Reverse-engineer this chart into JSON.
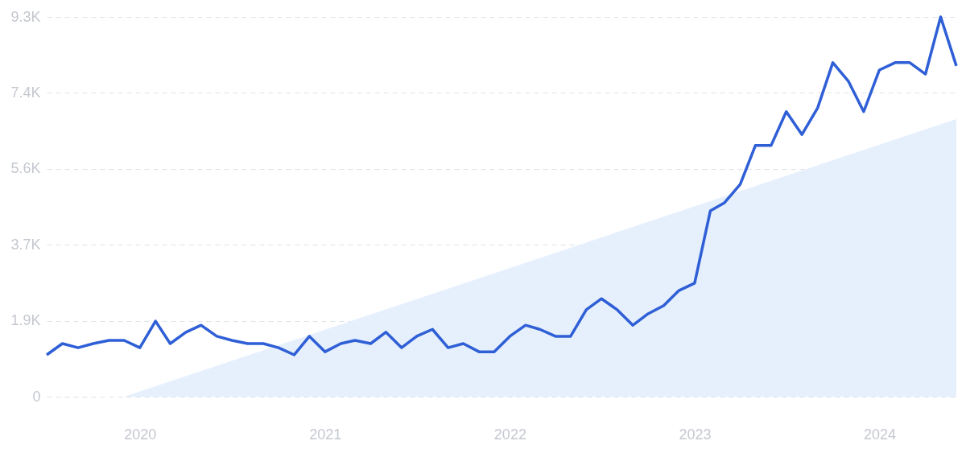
{
  "chart_data": {
    "type": "line",
    "x": [
      "2019-07",
      "2019-08",
      "2019-09",
      "2019-10",
      "2019-11",
      "2019-12",
      "2020-01",
      "2020-02",
      "2020-03",
      "2020-04",
      "2020-05",
      "2020-06",
      "2020-07",
      "2020-08",
      "2020-09",
      "2020-10",
      "2020-11",
      "2020-12",
      "2021-01",
      "2021-02",
      "2021-03",
      "2021-04",
      "2021-05",
      "2021-06",
      "2021-07",
      "2021-08",
      "2021-09",
      "2021-10",
      "2021-11",
      "2021-12",
      "2022-01",
      "2022-02",
      "2022-03",
      "2022-04",
      "2022-05",
      "2022-06",
      "2022-07",
      "2022-08",
      "2022-09",
      "2022-10",
      "2022-11",
      "2022-12",
      "2023-01",
      "2023-02",
      "2023-03",
      "2023-04",
      "2023-05",
      "2023-06",
      "2023-07",
      "2023-08",
      "2023-09",
      "2023-10",
      "2023-11",
      "2023-12",
      "2024-01",
      "2024-02",
      "2024-03",
      "2024-04",
      "2024-05",
      "2024-06"
    ],
    "series": [
      {
        "color": "#2f5fd6",
        "values": [
          1025,
          1300,
          1200,
          1300,
          1380,
          1380,
          1200,
          1850,
          1300,
          1580,
          1750,
          1480,
          1380,
          1300,
          1300,
          1200,
          1025,
          1480,
          1100,
          1300,
          1380,
          1300,
          1580,
          1200,
          1480,
          1650,
          1200,
          1300,
          1100,
          1100,
          1480,
          1750,
          1650,
          1480,
          1480,
          2130,
          2400,
          2130,
          1750,
          2030,
          2230,
          2600,
          2780,
          4550,
          4750,
          5200,
          6150,
          6150,
          6980,
          6420,
          7070,
          8180,
          7720,
          6980,
          8000,
          8180,
          8180,
          7900,
          9300,
          8100
        ]
      },
      {
        "type": "area",
        "color": "#e6f0fc",
        "x": [
          "2019-12",
          "2024-06"
        ],
        "values": [
          0,
          6800
        ]
      }
    ],
    "xlim": [
      "2019-07",
      "2024-06"
    ],
    "xticks": [
      "2020",
      "2021",
      "2022",
      "2023",
      "2024"
    ],
    "ylim": [
      0,
      9300
    ],
    "yticks": [
      {
        "value": 0,
        "label": "0"
      },
      {
        "value": 1860,
        "label": "1.9K"
      },
      {
        "value": 3720,
        "label": "3.7K"
      },
      {
        "value": 5580,
        "label": "5.6K"
      },
      {
        "value": 7440,
        "label": "7.4K"
      },
      {
        "value": 9300,
        "label": "9.3K"
      }
    ],
    "grid": "y",
    "line_style": "solid",
    "marker": "none"
  }
}
